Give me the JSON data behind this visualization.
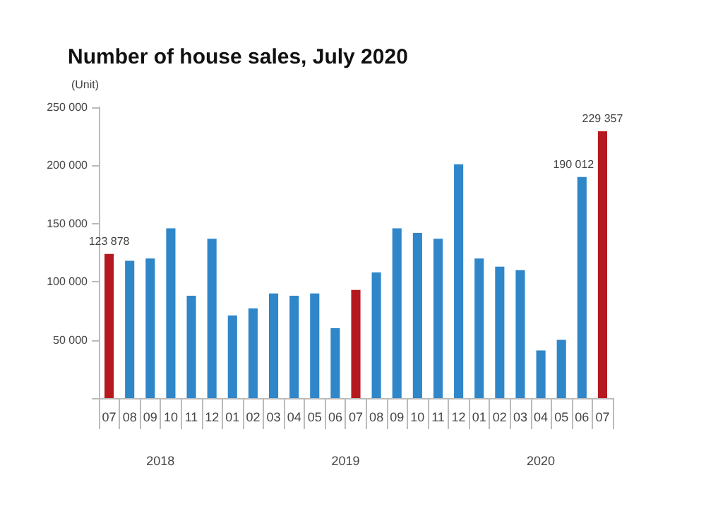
{
  "chart_data": {
    "type": "bar",
    "title": "Number of house sales, July 2020",
    "ylabel": "(Unit)",
    "categories": [
      "07",
      "08",
      "09",
      "10",
      "11",
      "12",
      "01",
      "02",
      "03",
      "04",
      "05",
      "06",
      "07",
      "08",
      "09",
      "10",
      "11",
      "12",
      "01",
      "02",
      "03",
      "04",
      "05",
      "06",
      "07"
    ],
    "values": [
      123878,
      118000,
      120000,
      146000,
      88000,
      137000,
      71000,
      77000,
      90000,
      88000,
      90000,
      60000,
      93000,
      108000,
      146000,
      142000,
      137000,
      201000,
      120000,
      113000,
      110000,
      41000,
      50000,
      190012,
      229357
    ],
    "colors": [
      "#b5191f",
      "#2f86c9",
      "#2f86c9",
      "#2f86c9",
      "#2f86c9",
      "#2f86c9",
      "#2f86c9",
      "#2f86c9",
      "#2f86c9",
      "#2f86c9",
      "#2f86c9",
      "#2f86c9",
      "#b5191f",
      "#2f86c9",
      "#2f86c9",
      "#2f86c9",
      "#2f86c9",
      "#2f86c9",
      "#2f86c9",
      "#2f86c9",
      "#2f86c9",
      "#2f86c9",
      "#2f86c9",
      "#2f86c9",
      "#b5191f"
    ],
    "value_labels": [
      "123 878",
      null,
      null,
      null,
      null,
      null,
      null,
      null,
      null,
      null,
      null,
      null,
      null,
      null,
      null,
      null,
      null,
      null,
      null,
      null,
      null,
      null,
      null,
      "190 012",
      "229 357"
    ],
    "ylim": [
      0,
      250000
    ],
    "yticks": [
      {
        "value": 0,
        "label": null
      },
      {
        "value": 50000,
        "label": "50 000"
      },
      {
        "value": 100000,
        "label": "100 000"
      },
      {
        "value": 150000,
        "label": "150 000"
      },
      {
        "value": 200000,
        "label": "200 000"
      },
      {
        "value": 250000,
        "label": "250 000"
      }
    ],
    "annotations": [
      "2018",
      "2019",
      "2020"
    ],
    "grid": false
  }
}
